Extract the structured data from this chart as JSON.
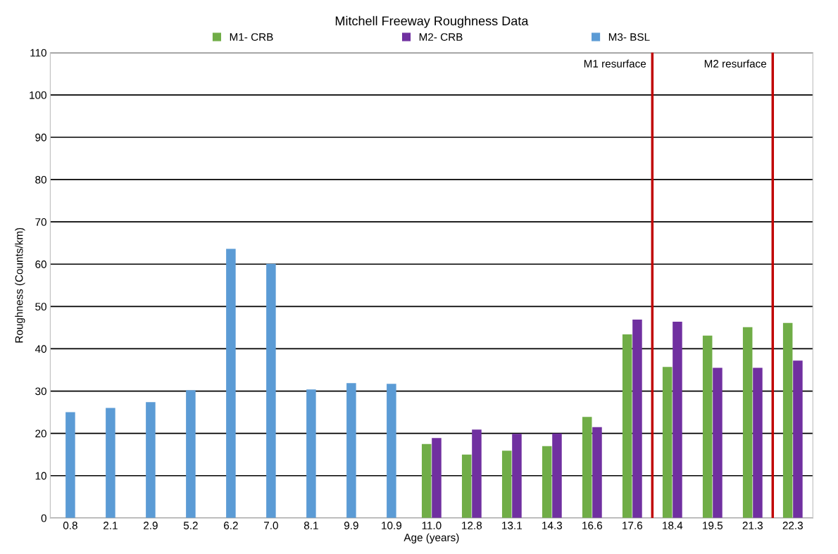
{
  "chart_data": {
    "type": "bar",
    "title": "Mitchell Freeway Roughness Data",
    "xlabel": "Age (years)",
    "ylabel": "Roughness (Counts/km)",
    "categories": [
      "0.8",
      "2.1",
      "2.9",
      "5.2",
      "6.2",
      "7.0",
      "8.1",
      "9.9",
      "10.9",
      "11.0",
      "12.8",
      "13.1",
      "14.3",
      "16.6",
      "17.6",
      "18.4",
      "19.5",
      "21.3",
      "22.3"
    ],
    "series": [
      {
        "name": "M1- CRB",
        "color": "#70ad47",
        "values": [
          null,
          null,
          null,
          null,
          null,
          null,
          null,
          null,
          null,
          17.5,
          15.0,
          15.9,
          17.0,
          23.9,
          43.4,
          35.7,
          43.1,
          45.1,
          46.1
        ]
      },
      {
        "name": "M2- CRB",
        "color": "#7030a0",
        "values": [
          null,
          null,
          null,
          null,
          null,
          null,
          null,
          null,
          null,
          18.9,
          20.9,
          19.9,
          20.0,
          21.5,
          46.9,
          46.4,
          35.5,
          35.5,
          37.2
        ]
      },
      {
        "name": "M3- BSL",
        "color": "#5b9bd5",
        "values": [
          25.0,
          26.0,
          27.4,
          30.2,
          63.6,
          60.1,
          30.4,
          31.9,
          31.7,
          null,
          null,
          null,
          null,
          null,
          null,
          null,
          null,
          null,
          null
        ]
      }
    ],
    "ylim": [
      0,
      110
    ],
    "yticks": [
      0,
      10,
      20,
      30,
      40,
      50,
      60,
      70,
      80,
      90,
      100,
      110
    ],
    "grid": "y",
    "legend": "top",
    "annotations": [
      "M1 resurface",
      "M2 resurface"
    ]
  }
}
